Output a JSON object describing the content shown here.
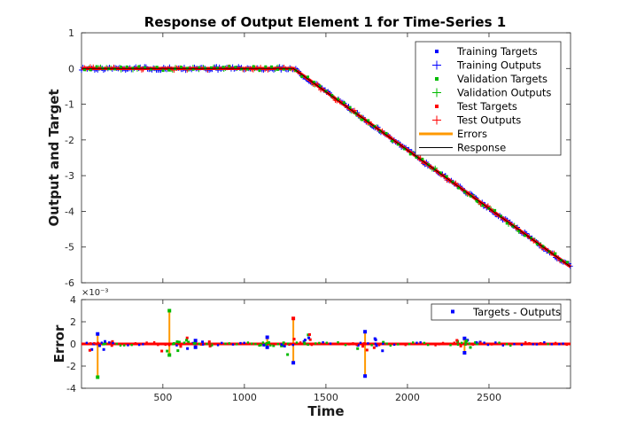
{
  "chart_data": [
    {
      "type": "line",
      "title": "Response of Output Element 1 for Time-Series 1",
      "xlabel": "",
      "ylabel": "Output and Target",
      "xlim": [
        1,
        3000
      ],
      "ylim": [
        -6,
        1
      ],
      "yticks": [
        "1",
        "0",
        "-1",
        "-2",
        "-3",
        "-4",
        "-5",
        "-6"
      ],
      "xticks": [],
      "grid": false,
      "legend_position": "top-right",
      "response": {
        "x": [
          1,
          1300,
          3000
        ],
        "y": [
          0,
          0,
          -5.55
        ]
      },
      "series": [
        {
          "name": "Training Targets",
          "color": "#0000ff",
          "marker": "dot"
        },
        {
          "name": "Training Outputs",
          "color": "#0000ff",
          "marker": "plus"
        },
        {
          "name": "Validation Targets",
          "color": "#00bb00",
          "marker": "dot"
        },
        {
          "name": "Validation Outputs",
          "color": "#00bb00",
          "marker": "plus"
        },
        {
          "name": "Test Targets",
          "color": "#ff0000",
          "marker": "dot"
        },
        {
          "name": "Test Outputs",
          "color": "#ff0000",
          "marker": "plus"
        },
        {
          "name": "Errors",
          "color": "#ff9900",
          "marker": "line"
        },
        {
          "name": "Response",
          "color": "#000000",
          "marker": "line"
        }
      ]
    },
    {
      "type": "line",
      "title": "",
      "xlabel": "Time",
      "ylabel": "Error",
      "xlim": [
        1,
        3000
      ],
      "ylim": [
        -0.004,
        0.004
      ],
      "scale_label": "×10⁻³",
      "yticks": [
        "4",
        "2",
        "0",
        "-2",
        "-4"
      ],
      "xticks": [
        "500",
        "1000",
        "1500",
        "2000",
        "2500"
      ],
      "grid": false,
      "legend_position": "top-right",
      "series": [
        {
          "name": "Targets - Outputs",
          "color": "#0000ff",
          "marker": "dot"
        }
      ],
      "spikes": [
        {
          "x": 100,
          "min": -0.003,
          "max": 0.0009
        },
        {
          "x": 540,
          "min": -0.001,
          "max": 0.003
        },
        {
          "x": 700,
          "min": -0.0003,
          "max": 0.0003
        },
        {
          "x": 1140,
          "min": -0.0003,
          "max": 0.0006
        },
        {
          "x": 1300,
          "min": -0.0017,
          "max": 0.0023
        },
        {
          "x": 1740,
          "min": -0.0029,
          "max": 0.0011
        },
        {
          "x": 2350,
          "min": -0.0008,
          "max": 0.0005
        }
      ]
    }
  ]
}
